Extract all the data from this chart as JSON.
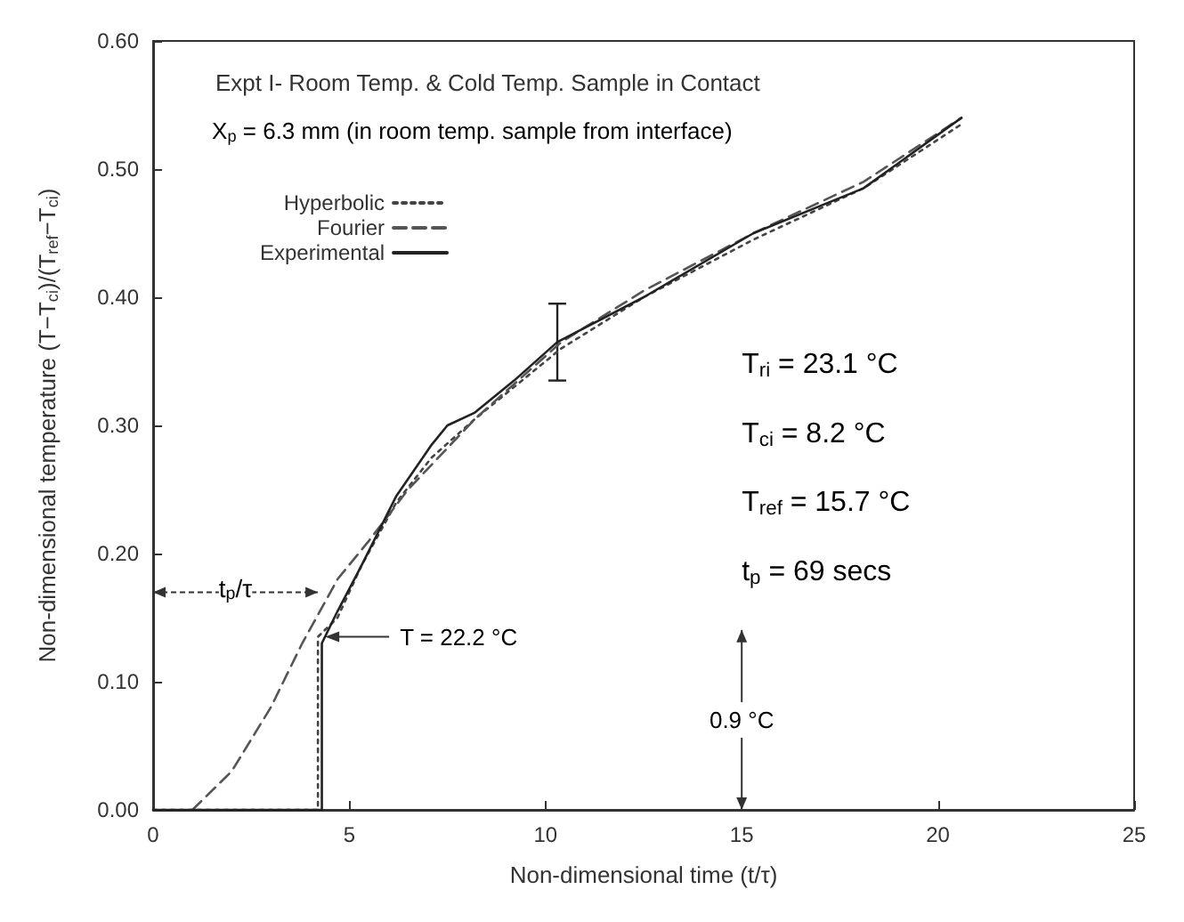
{
  "chart_data": {
    "type": "line",
    "title": "Expt I- Room Temp. & Cold Temp. Sample in Contact",
    "xlabel": "Non-dimensional time (t/τ)",
    "ylabel": "Non-dimensional temperature (T−T$_{ci}$)/(T$_{ref}$−T$_{ci}$)",
    "xlim": [
      0,
      25
    ],
    "xticks": [
      0,
      5,
      10,
      15,
      20,
      25
    ],
    "ylim": [
      0,
      0.6
    ],
    "yticks": [
      {
        "value": 0,
        "label": "0.00"
      },
      {
        "value": 0.1,
        "label": "0.10"
      },
      {
        "value": 0.2,
        "label": "0.20"
      },
      {
        "value": 0.3,
        "label": "0.30"
      },
      {
        "value": 0.4,
        "label": "0.40"
      },
      {
        "value": 0.5,
        "label": "0.50"
      },
      {
        "value": 0.6,
        "label": "0.60"
      }
    ],
    "grid": false,
    "legend": "top left",
    "marker": "none",
    "series": [
      {
        "name": "Hyperbolic",
        "color": "#444444",
        "line_style": "dotted",
        "x": [
          0,
          4.2,
          4.2,
          4.7,
          5.3,
          6.2,
          7.1,
          8.2,
          9.2,
          10.4,
          12.5,
          15.3,
          18.1,
          20.6
        ],
        "values": [
          0,
          0,
          0.135,
          0.15,
          0.19,
          0.24,
          0.275,
          0.305,
          0.33,
          0.36,
          0.4,
          0.445,
          0.485,
          0.535
        ]
      },
      {
        "name": "Fourier",
        "color": "#555555",
        "line_style": "dashed",
        "x": [
          1,
          2,
          3,
          3.8,
          4.7,
          5.5,
          6.5,
          8.2,
          10.4,
          12.5,
          15.3,
          18.1,
          20.6
        ],
        "values": [
          0,
          0.03,
          0.08,
          0.13,
          0.18,
          0.21,
          0.25,
          0.305,
          0.365,
          0.405,
          0.45,
          0.49,
          0.54
        ]
      },
      {
        "name": "Experimental",
        "color": "#222222",
        "line_style": "solid",
        "x": [
          0,
          4.3,
          4.3,
          4.7,
          5.3,
          6.2,
          7.1,
          7.5,
          8.2,
          9.2,
          10.3,
          12.5,
          15.3,
          18.1,
          20.6
        ],
        "values": [
          0,
          0,
          0.13,
          0.155,
          0.19,
          0.245,
          0.285,
          0.3,
          0.31,
          0.335,
          0.365,
          0.4,
          0.45,
          0.485,
          0.54
        ],
        "errors": [
          null,
          null,
          null,
          null,
          null,
          null,
          null,
          null,
          null,
          null,
          0.03,
          null,
          null,
          null,
          null
        ]
      }
    ],
    "annotations": [
      "X$_{p}$ = 6.3 mm (in room temp. sample from interface)",
      "T$_{ri}$ = 23.1 °C",
      "T$_{ci}$ = 8.2 °C",
      "T$_{ref}$ = 15.7 °C",
      "t$_{p}$ = 69 secs",
      {
        "text": "T = 22.2 °C",
        "x": 4.2,
        "y": 0.135
      },
      "t$_{p}$/τ",
      "0.9 °C"
    ]
  }
}
